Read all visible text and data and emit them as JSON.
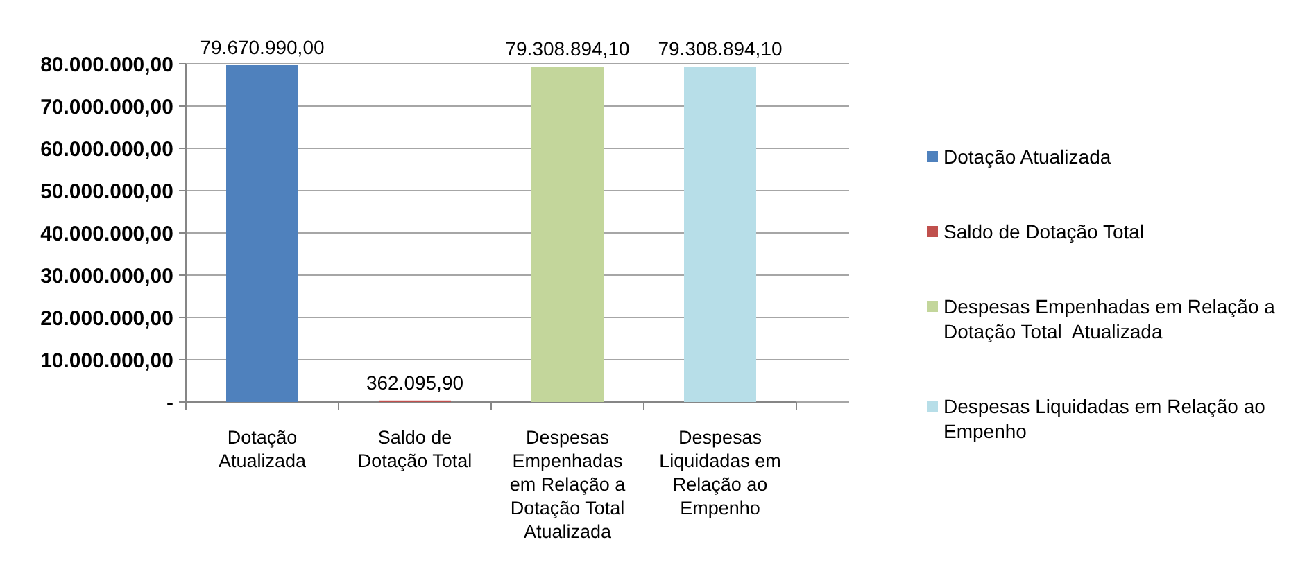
{
  "chart_data": {
    "type": "bar",
    "categories": [
      "Dotação Atualizada",
      "Saldo de Dotação Total",
      "Despesas Empenhadas em Relação a Dotação Total Atualizada",
      "Despesas Liquidadas em Relação ao Empenho"
    ],
    "series": [
      {
        "name": "Dotação Atualizada",
        "color": "#4f81bd",
        "values": [
          79670990.0,
          null,
          null,
          null
        ],
        "value_labels": [
          "79.670.990,00",
          null,
          null,
          null
        ]
      },
      {
        "name": "Saldo de Dotação Total",
        "color": "#c0504d",
        "values": [
          null,
          362095.9,
          null,
          null
        ],
        "value_labels": [
          null,
          "362.095,90",
          null,
          null
        ]
      },
      {
        "name": "Despesas Empenhadas em Relação a Dotação Total  Atualizada",
        "color": "#c3d69b",
        "values": [
          null,
          null,
          79308894.1,
          null
        ],
        "value_labels": [
          null,
          null,
          "79.308.894,10",
          null
        ]
      },
      {
        "name": "Despesas Liquidadas em Relação ao Empenho",
        "color": "#b7dee8",
        "values": [
          null,
          null,
          null,
          79308894.1
        ],
        "value_labels": [
          null,
          null,
          null,
          "79.308.894,10"
        ]
      }
    ],
    "ylim": [
      0,
      80000000
    ],
    "yticks": [
      {
        "value": 0,
        "label": "-"
      },
      {
        "value": 10000000,
        "label": "10.000.000,00"
      },
      {
        "value": 20000000,
        "label": "20.000.000,00"
      },
      {
        "value": 30000000,
        "label": "30.000.000,00"
      },
      {
        "value": 40000000,
        "label": "40.000.000,00"
      },
      {
        "value": 50000000,
        "label": "50.000.000,00"
      },
      {
        "value": 60000000,
        "label": "60.000.000,00"
      },
      {
        "value": 70000000,
        "label": "70.000.000,00"
      },
      {
        "value": 80000000,
        "label": "80.000.000,00"
      }
    ],
    "grid": "y",
    "legend": "right"
  }
}
